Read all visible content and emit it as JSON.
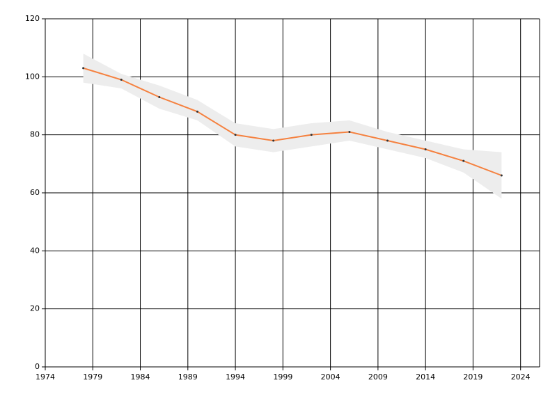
{
  "chart_data": {
    "type": "line",
    "x": [
      1978,
      1982,
      1986,
      1990,
      1994,
      1998,
      2002,
      2006,
      2010,
      2014,
      2018,
      2022
    ],
    "series": [
      {
        "color": "#f5813f",
        "values": [
          103,
          99,
          93,
          88,
          80,
          78,
          80,
          81,
          78,
          75,
          71,
          66
        ],
        "upper": [
          108,
          101,
          97,
          92,
          84,
          82,
          84,
          85,
          81,
          78,
          75,
          74
        ],
        "lower": [
          98,
          96,
          89,
          85,
          76,
          74,
          76,
          78,
          75,
          72,
          67,
          58
        ],
        "band_color": "#ededed"
      }
    ],
    "xlim": [
      1974,
      2026
    ],
    "xticks": [
      1974,
      1979,
      1984,
      1989,
      1994,
      1999,
      2004,
      2009,
      2014,
      2019,
      2024
    ],
    "ylim": [
      0,
      120
    ],
    "yticks": [
      0,
      20,
      40,
      60,
      80,
      100,
      120
    ],
    "grid": true
  }
}
